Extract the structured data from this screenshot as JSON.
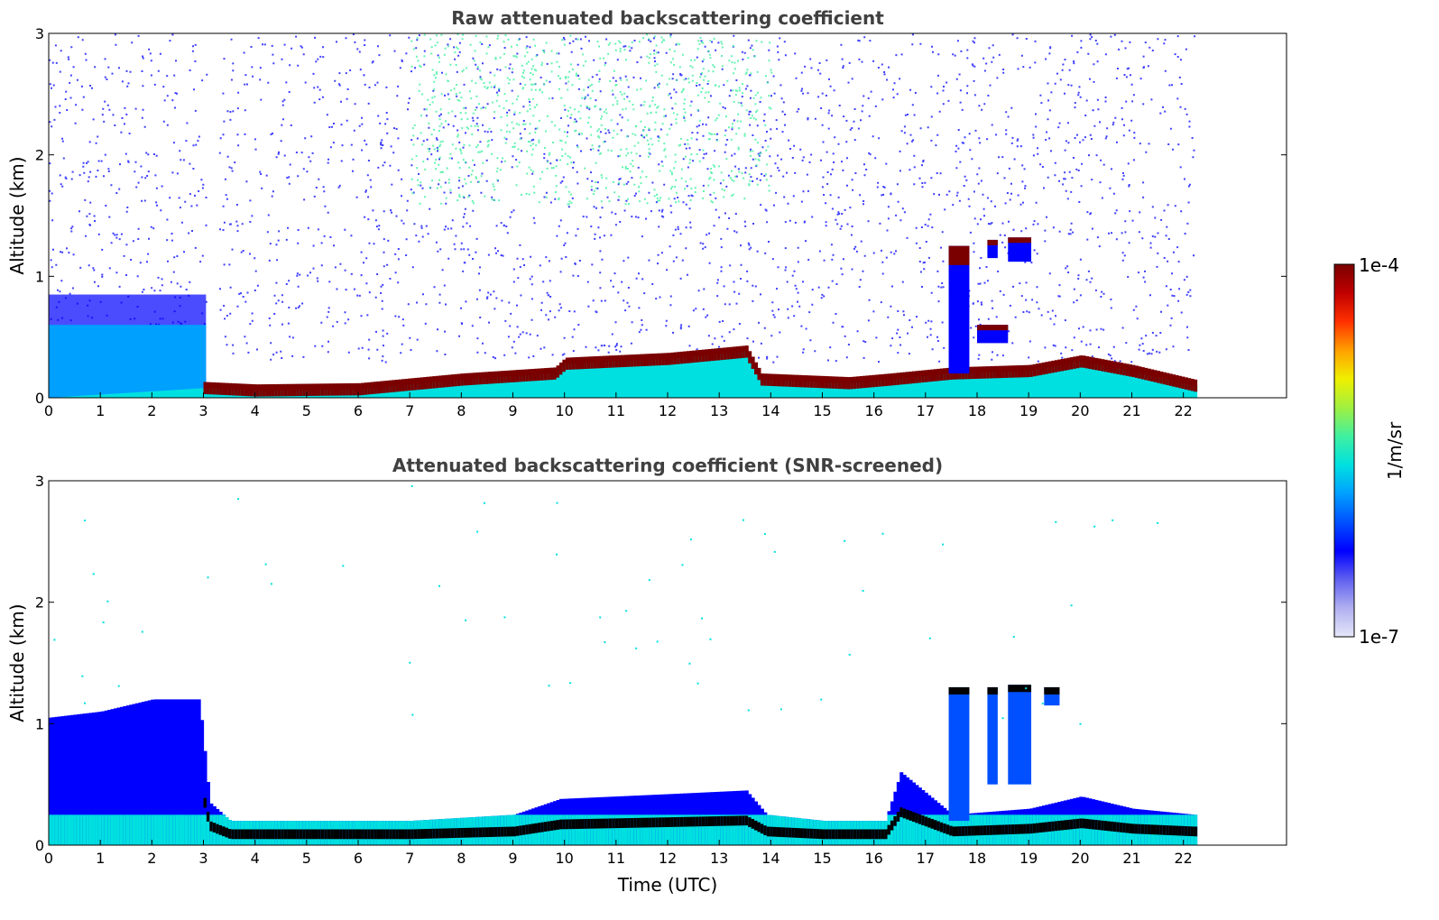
{
  "colors": {
    "cloud": "#7a0000",
    "screened_core": "#000000",
    "colormap": [
      "#e6e6fa",
      "#b0b0f0",
      "#6060f0",
      "#0000ff",
      "#0050ff",
      "#00a0ff",
      "#00e0e0",
      "#40f0a0",
      "#a0f040",
      "#f0f000",
      "#ffa000",
      "#ff3000",
      "#c00000",
      "#7a0000"
    ]
  },
  "chart_data": [
    {
      "type": "heatmap",
      "title": "Raw attenuated backscattering coefficient",
      "xlabel": "",
      "ylabel": "Altitude (km)",
      "xlim": [
        0,
        24
      ],
      "ylim": [
        0,
        3
      ],
      "x_ticks": [
        "0",
        "1",
        "2",
        "3",
        "4",
        "5",
        "6",
        "7",
        "8",
        "9",
        "10",
        "11",
        "12",
        "13",
        "14",
        "15",
        "16",
        "17",
        "18",
        "19",
        "20",
        "21",
        "22"
      ],
      "y_ticks": [
        "0",
        "1",
        "2",
        "3"
      ],
      "data_end_time": 22.2,
      "boundary_layer_top_km": [
        [
          0,
          0.0
        ],
        [
          3,
          0.08
        ],
        [
          4,
          0.06
        ],
        [
          6,
          0.07
        ],
        [
          8,
          0.15
        ],
        [
          9.8,
          0.2
        ],
        [
          10,
          0.28
        ],
        [
          12,
          0.32
        ],
        [
          13.5,
          0.38
        ],
        [
          13.8,
          0.15
        ],
        [
          15.5,
          0.12
        ],
        [
          16.3,
          0.15
        ],
        [
          17.5,
          0.2
        ],
        [
          19,
          0.22
        ],
        [
          20,
          0.3
        ],
        [
          21,
          0.22
        ],
        [
          22.2,
          0.1
        ]
      ],
      "cloud_segments": [
        {
          "x_start": 17.45,
          "x_end": 17.85,
          "y_bottom": 0.2,
          "y_top": 1.25
        },
        {
          "x_start": 18.2,
          "x_end": 18.4,
          "y_bottom": 1.15,
          "y_top": 1.3
        },
        {
          "x_start": 18.6,
          "x_end": 19.05,
          "y_bottom": 1.12,
          "y_top": 1.32
        },
        {
          "x_start": 18.0,
          "x_end": 18.6,
          "y_bottom": 0.45,
          "y_top": 0.6
        }
      ]
    },
    {
      "type": "heatmap",
      "title": "Attenuated backscattering coefficient (SNR-screened)",
      "xlabel": "Time (UTC)",
      "ylabel": "Altitude (km)",
      "xlim": [
        0,
        24
      ],
      "ylim": [
        0,
        3
      ],
      "x_ticks": [
        "0",
        "1",
        "2",
        "3",
        "4",
        "5",
        "6",
        "7",
        "8",
        "9",
        "10",
        "11",
        "12",
        "13",
        "14",
        "15",
        "16",
        "17",
        "18",
        "19",
        "20",
        "21",
        "22"
      ],
      "y_ticks": [
        "0",
        "1",
        "2",
        "3"
      ],
      "data_end_time": 22.2,
      "screened_layer_top_km": [
        [
          0,
          1.05
        ],
        [
          1,
          1.1
        ],
        [
          2,
          1.2
        ],
        [
          2.9,
          1.2
        ],
        [
          3.1,
          0.35
        ],
        [
          3.5,
          0.2
        ],
        [
          5,
          0.2
        ],
        [
          7,
          0.2
        ],
        [
          9,
          0.25
        ],
        [
          9.9,
          0.38
        ],
        [
          12,
          0.42
        ],
        [
          13.5,
          0.45
        ],
        [
          13.9,
          0.25
        ],
        [
          15,
          0.2
        ],
        [
          16.2,
          0.2
        ],
        [
          16.5,
          0.6
        ],
        [
          17.5,
          0.25
        ],
        [
          19,
          0.3
        ],
        [
          20,
          0.4
        ],
        [
          21,
          0.3
        ],
        [
          22.2,
          0.25
        ]
      ]
    }
  ],
  "colorbar": {
    "label": "1/m/sr",
    "max_label": "1e-4",
    "min_label": "1e-7",
    "range": [
      1e-07,
      0.0001
    ],
    "scale": "log"
  }
}
